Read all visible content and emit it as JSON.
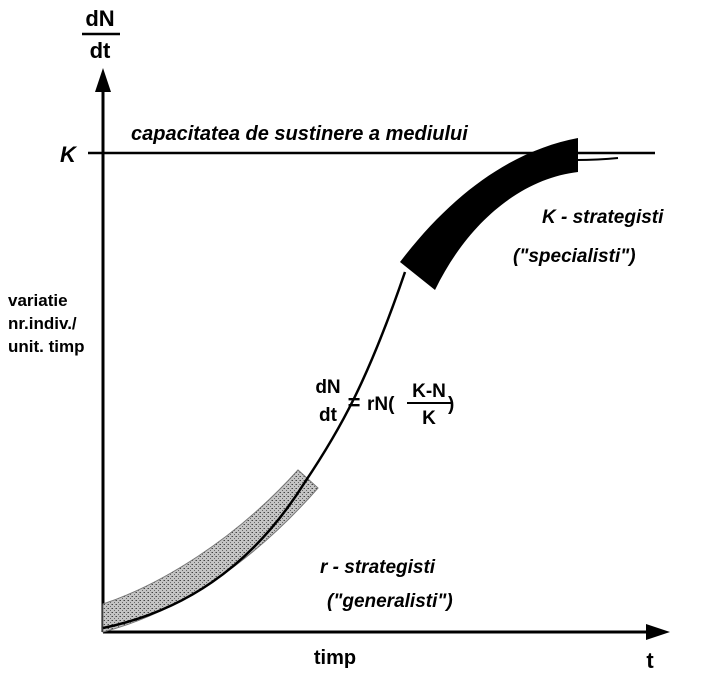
{
  "axes": {
    "y_label_top": "dN",
    "y_label_bottom": "dt",
    "x_label": "timp",
    "x_end_label": "t",
    "k_mark": "K",
    "y_description": [
      "variatie",
      "nr.indiv./",
      "unit. timp"
    ]
  },
  "capacity_line_label": "capacitatea de sustinere a mediului",
  "equation": {
    "lhs_top": "dN",
    "lhs_bottom": "dt",
    "equals": "=",
    "prefix": "rN(",
    "frac_top": "K-N",
    "frac_bottom": "K",
    "suffix": ")"
  },
  "k_strategists": {
    "title": "K - strategisti",
    "subtitle": "(\"specialisti\")"
  },
  "r_strategists": {
    "title": "r - strategisti",
    "subtitle": "(\"generalisti\")"
  },
  "colors": {
    "ink": "#000000",
    "r_band": "#bdbdbd",
    "k_band": "#000000"
  }
}
